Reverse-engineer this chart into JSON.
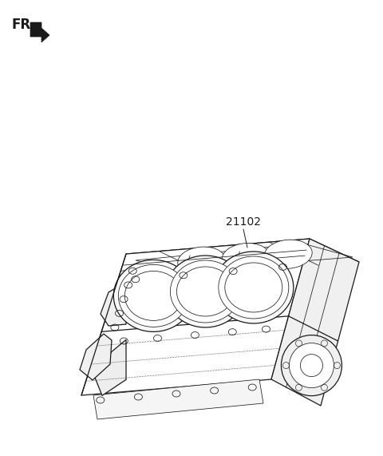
{
  "bg_color": "#ffffff",
  "line_color": "#1a1a1a",
  "fig_width": 4.8,
  "fig_height": 5.71,
  "dpi": 100,
  "fr_label": "FR.",
  "fr_fontsize": 12,
  "fr_fontweight": "bold",
  "part_label": "21102",
  "label_fontsize": 10
}
